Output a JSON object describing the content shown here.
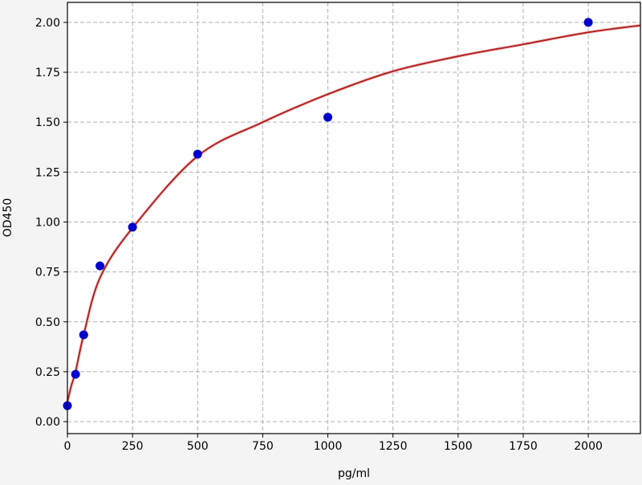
{
  "chart_data": {
    "type": "scatter",
    "title": "",
    "xlabel": "pg/ml",
    "ylabel": "OD450",
    "xlim": [
      0,
      2200
    ],
    "ylim": [
      -0.06,
      2.1
    ],
    "xticks": [
      0,
      250,
      500,
      750,
      1000,
      1250,
      1500,
      1750,
      2000
    ],
    "xtick_labels": [
      "0",
      "250",
      "500",
      "750",
      "1000",
      "1250",
      "1500",
      "1750",
      "2000"
    ],
    "yticks": [
      0,
      0.25,
      0.5,
      0.75,
      1.0,
      1.25,
      1.5,
      1.75,
      2.0
    ],
    "ytick_labels": [
      "0.00",
      "0.25",
      "0.50",
      "0.75",
      "1.00",
      "1.25",
      "1.50",
      "1.75",
      "2.00"
    ],
    "grid": true,
    "series": [
      {
        "kind": "points",
        "color": "#0000cc",
        "x": [
          0,
          31.25,
          62.5,
          125,
          250,
          500,
          1000,
          2000
        ],
        "y": [
          0.08,
          0.237,
          0.435,
          0.78,
          0.974,
          1.34,
          1.525,
          2.0
        ]
      },
      {
        "kind": "fitted-curve",
        "color": "#b22222",
        "x": [
          0,
          15,
          31.25,
          62.5,
          125,
          250,
          500,
          750,
          1000,
          1250,
          1500,
          1750,
          2000,
          2200
        ],
        "y": [
          0.1,
          0.18,
          0.25,
          0.435,
          0.72,
          0.97,
          1.33,
          1.5,
          1.64,
          1.755,
          1.83,
          1.89,
          1.95,
          1.985
        ]
      }
    ]
  }
}
